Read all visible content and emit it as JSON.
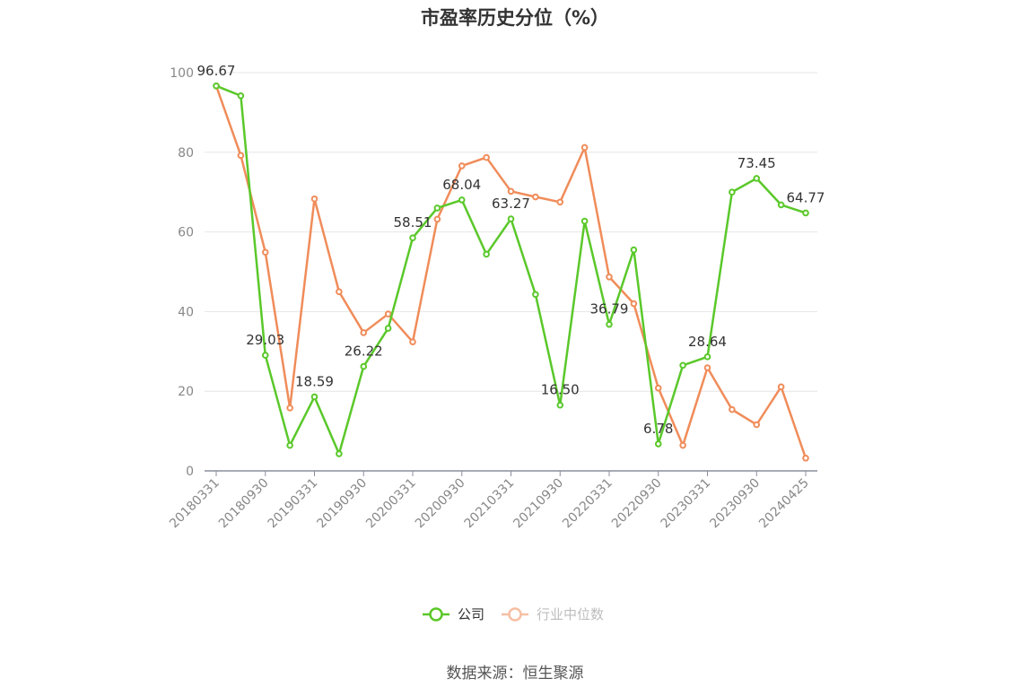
{
  "chart_data": {
    "type": "line",
    "title": "市盈率历史分位（%）",
    "source": "数据来源：恒生聚源",
    "ylim": [
      0,
      100
    ],
    "yticks": [
      0,
      20,
      40,
      60,
      80,
      100
    ],
    "grid": true,
    "legend_placement": "bottom-center",
    "x_tick_labels": [
      "20180331",
      "20180930",
      "20190331",
      "20190930",
      "20200331",
      "20200930",
      "20210331",
      "20210930",
      "20220331",
      "20220930",
      "20230331",
      "20230930",
      "20240425"
    ],
    "x": [
      "20180331",
      "20180630",
      "20180930",
      "20181231",
      "20190331",
      "20190630",
      "20190930",
      "20191231",
      "20200331",
      "20200630",
      "20200930",
      "20201231",
      "20210331",
      "20210630",
      "20210930",
      "20211231",
      "20220331",
      "20220630",
      "20220930",
      "20221231",
      "20230331",
      "20230630",
      "20230930",
      "20231231",
      "20240425"
    ],
    "series": [
      {
        "name": "公司",
        "color": "#5ac82a",
        "values": [
          96.67,
          94.2,
          29.03,
          6.4,
          18.59,
          4.3,
          26.22,
          35.8,
          58.51,
          66.0,
          68.04,
          54.4,
          63.27,
          44.3,
          16.5,
          62.7,
          36.79,
          55.5,
          6.78,
          26.5,
          28.64,
          70.0,
          73.45,
          66.8,
          64.77
        ],
        "labels": [
          "96.67",
          "",
          "29.03",
          "",
          "18.59",
          "",
          "26.22",
          "",
          "58.51",
          "",
          "68.04",
          "",
          "63.27",
          "",
          "16.50",
          "",
          "36.79",
          "",
          "6.78",
          "",
          "28.64",
          "",
          "73.45",
          "",
          "64.77"
        ]
      },
      {
        "name": "行业中位数",
        "color": "#f08c5a",
        "values": [
          96.67,
          79.2,
          54.9,
          15.8,
          68.3,
          45.0,
          34.7,
          39.4,
          32.4,
          63.2,
          76.6,
          78.7,
          70.2,
          68.8,
          67.5,
          81.2,
          48.7,
          42.0,
          20.8,
          6.4,
          25.9,
          15.4,
          11.6,
          21.1,
          3.2
        ]
      }
    ]
  }
}
